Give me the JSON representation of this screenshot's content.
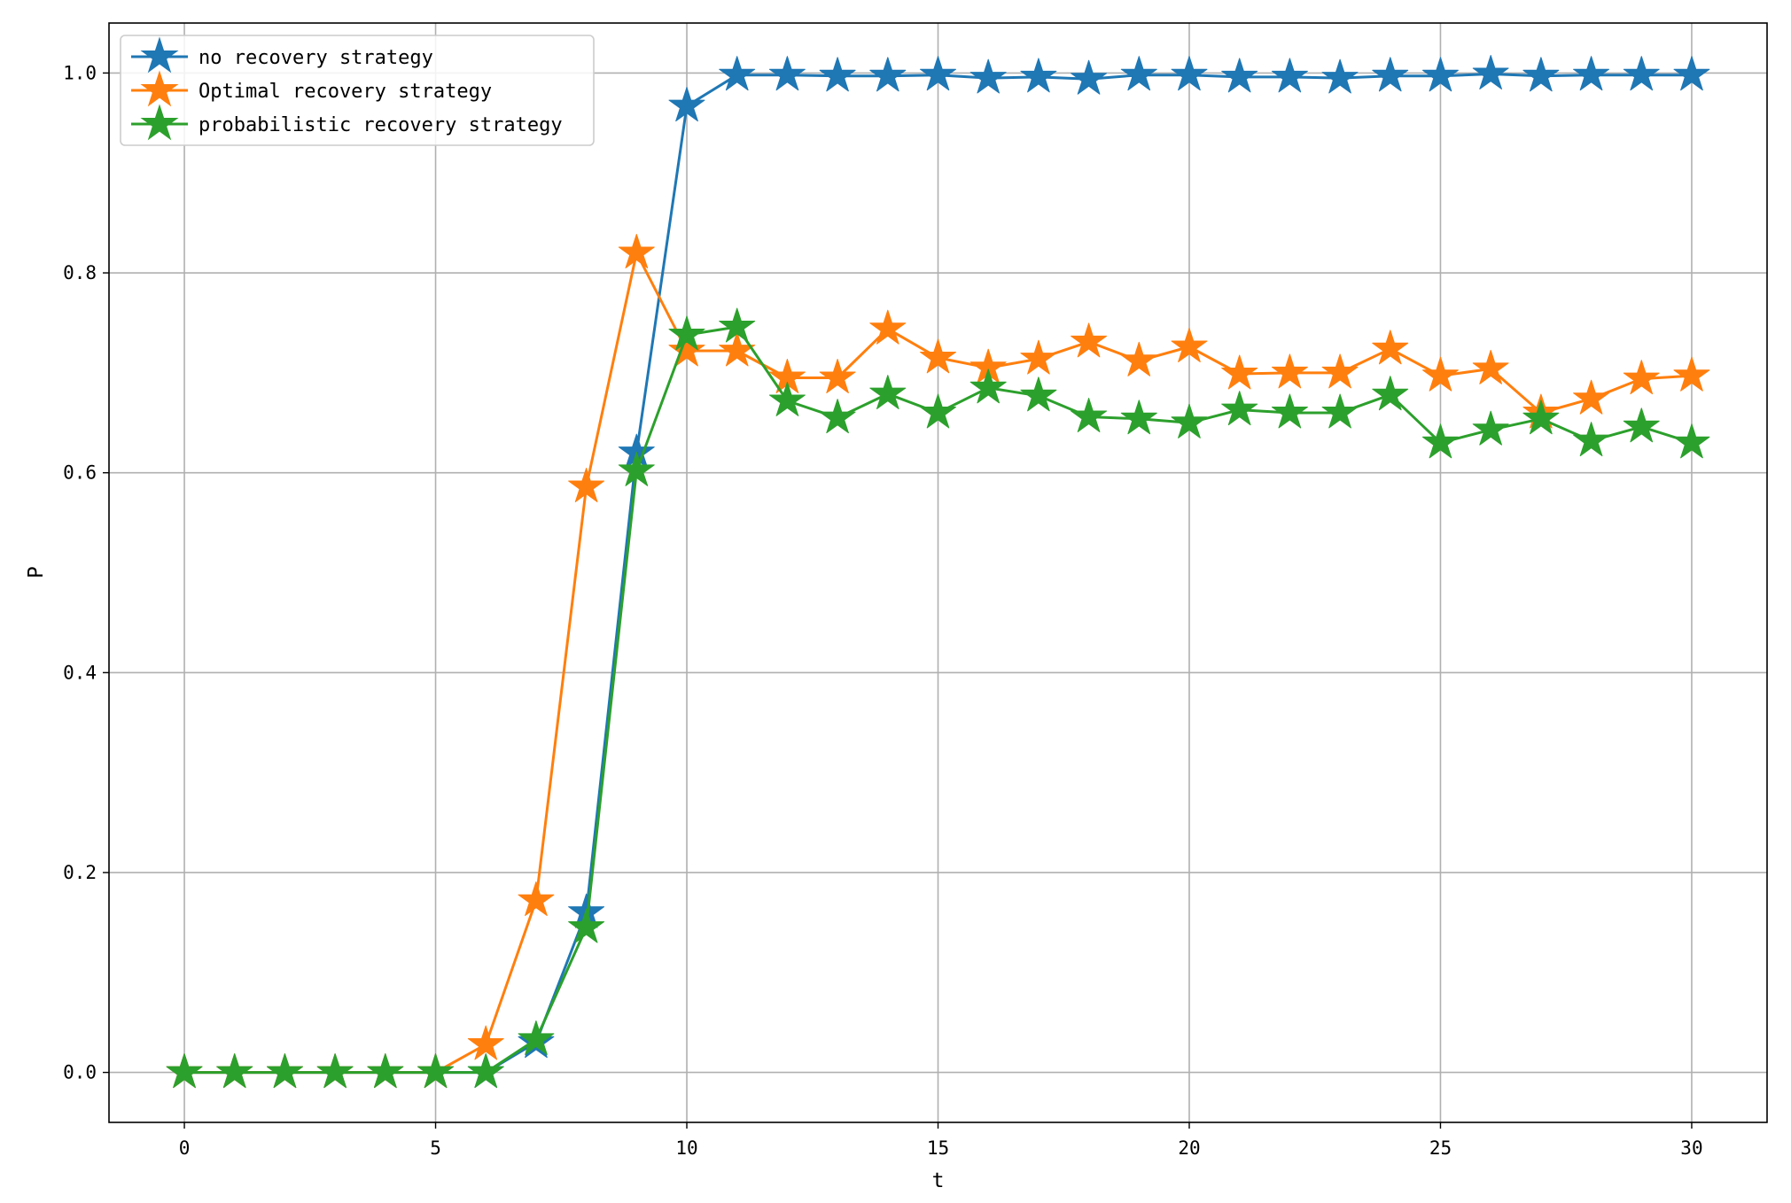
{
  "chart_data": {
    "type": "line",
    "title": "",
    "xlabel": "t",
    "ylabel": "P",
    "xlim": [
      -1.5,
      31.5
    ],
    "ylim": [
      -0.05,
      1.05
    ],
    "xticks": [
      0,
      5,
      10,
      15,
      20,
      25,
      30
    ],
    "xtick_labels": [
      "0",
      "5",
      "10",
      "15",
      "20",
      "25",
      "30"
    ],
    "yticks": [
      0.0,
      0.2,
      0.4,
      0.6,
      0.8,
      1.0
    ],
    "ytick_labels": [
      "0.0",
      "0.2",
      "0.4",
      "0.6",
      "0.8",
      "1.0"
    ],
    "grid": true,
    "legend_position": "top-left",
    "marker": "star",
    "x": [
      0,
      1,
      2,
      3,
      4,
      5,
      6,
      7,
      8,
      9,
      10,
      11,
      12,
      13,
      14,
      15,
      16,
      17,
      18,
      19,
      20,
      21,
      22,
      23,
      24,
      25,
      26,
      27,
      28,
      29,
      30
    ],
    "series": [
      {
        "name": "no recovery strategy",
        "color": "#1f77b4",
        "values": [
          0,
          0,
          0,
          0,
          0,
          0,
          0,
          0.03,
          0.16,
          0.62,
          0.967,
          0.998,
          0.998,
          0.997,
          0.997,
          0.998,
          0.995,
          0.996,
          0.994,
          0.998,
          0.998,
          0.996,
          0.996,
          0.995,
          0.997,
          0.997,
          0.999,
          0.997,
          0.998,
          0.998,
          0.998
        ]
      },
      {
        "name": "Optimal recovery strategy",
        "color": "#ff7f0e",
        "values": [
          0,
          0,
          0,
          0,
          0,
          0,
          0.028,
          0.172,
          0.586,
          0.82,
          0.722,
          0.722,
          0.695,
          0.695,
          0.744,
          0.715,
          0.705,
          0.714,
          0.731,
          0.712,
          0.726,
          0.699,
          0.7,
          0.7,
          0.724,
          0.697,
          0.704,
          0.66,
          0.674,
          0.694,
          0.697
        ]
      },
      {
        "name": "probabilistic recovery strategy",
        "color": "#2ca02c",
        "values": [
          0,
          0,
          0,
          0,
          0,
          0,
          0,
          0.033,
          0.145,
          0.602,
          0.738,
          0.746,
          0.672,
          0.655,
          0.679,
          0.66,
          0.685,
          0.677,
          0.656,
          0.654,
          0.65,
          0.663,
          0.66,
          0.66,
          0.678,
          0.63,
          0.643,
          0.654,
          0.632,
          0.646,
          0.63
        ]
      }
    ]
  }
}
